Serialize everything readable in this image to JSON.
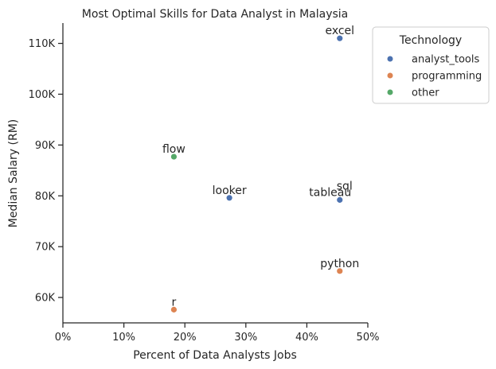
{
  "chart_data": {
    "type": "scatter",
    "title": "Most Optimal Skills for Data Analyst in Malaysia",
    "xlabel": "Percent of Data Analysts Jobs",
    "ylabel": "Median Salary (RM)",
    "xlim": [
      0,
      50
    ],
    "ylim": [
      55000,
      114000
    ],
    "x_ticks": [
      {
        "value": 0,
        "label": "0%"
      },
      {
        "value": 10,
        "label": "10%"
      },
      {
        "value": 20,
        "label": "20%"
      },
      {
        "value": 30,
        "label": "30%"
      },
      {
        "value": 40,
        "label": "40%"
      },
      {
        "value": 50,
        "label": "50%"
      }
    ],
    "y_ticks": [
      {
        "value": 60000,
        "label": "60K"
      },
      {
        "value": 70000,
        "label": "70K"
      },
      {
        "value": 80000,
        "label": "80K"
      },
      {
        "value": 90000,
        "label": "90K"
      },
      {
        "value": 100000,
        "label": "100K"
      },
      {
        "value": 110000,
        "label": "110K"
      }
    ],
    "grid": false,
    "legend": {
      "title": "Technology",
      "placement": "outside-top-right",
      "entries": [
        {
          "name": "analyst_tools",
          "color": "#4c72b0"
        },
        {
          "name": "programming",
          "color": "#dd8452"
        },
        {
          "name": "other",
          "color": "#55a868"
        }
      ]
    },
    "points": [
      {
        "label": "excel",
        "x": 45.4,
        "y": 111000,
        "group": "analyst_tools"
      },
      {
        "label": "flow",
        "x": 18.2,
        "y": 87700,
        "group": "other"
      },
      {
        "label": "looker",
        "x": 27.3,
        "y": 79600,
        "group": "analyst_tools"
      },
      {
        "label": "sql",
        "x": 45.4,
        "y": 79200,
        "group": "analyst_tools"
      },
      {
        "label": "tableau",
        "x": 45.4,
        "y": 79200,
        "group": "analyst_tools"
      },
      {
        "label": "python",
        "x": 45.4,
        "y": 65200,
        "group": "programming"
      },
      {
        "label": "r",
        "x": 18.2,
        "y": 57600,
        "group": "programming"
      }
    ]
  }
}
